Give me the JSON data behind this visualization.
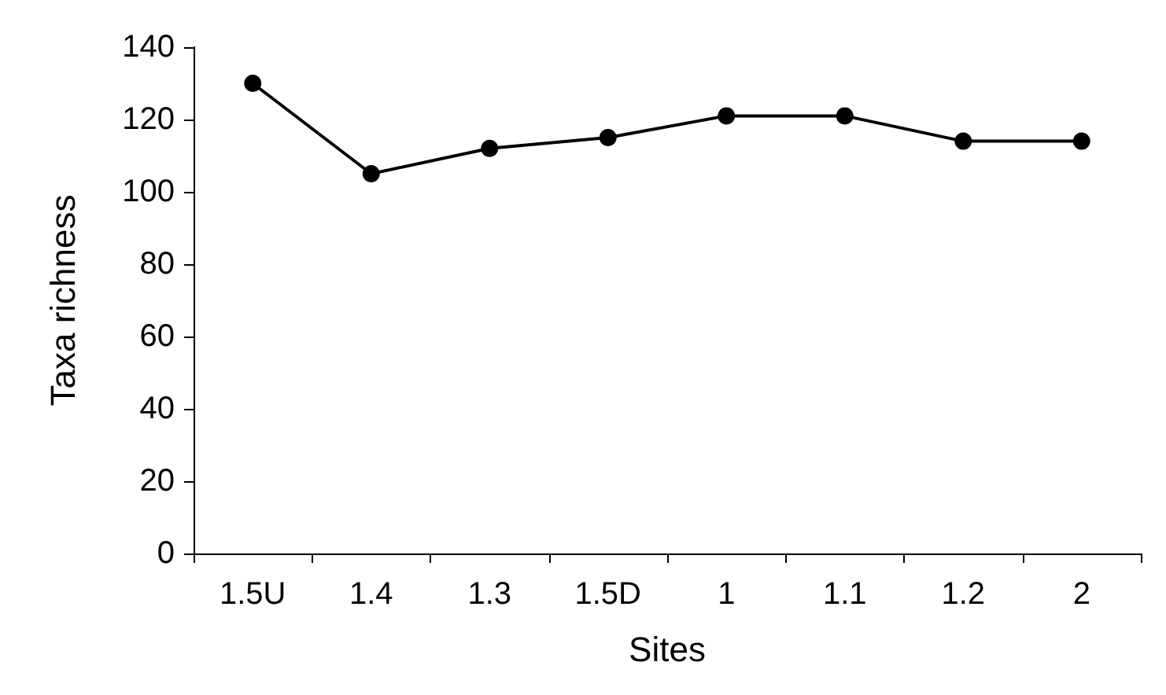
{
  "chart_data": {
    "type": "line",
    "xlabel": "Sites",
    "ylabel": "Taxa richness",
    "categories": [
      "1.5U",
      "1.4",
      "1.3",
      "1.5D",
      "1",
      "1.1",
      "1.2",
      "2"
    ],
    "series": [
      {
        "color": "#000000",
        "values": [
          130,
          105,
          112,
          115,
          121,
          121,
          114,
          114
        ]
      }
    ],
    "ylim": [
      0,
      140
    ],
    "yticks": [
      0,
      20,
      40,
      60,
      80,
      100,
      120,
      140
    ],
    "grid": false,
    "marker": "circle",
    "line_style": "solid"
  }
}
